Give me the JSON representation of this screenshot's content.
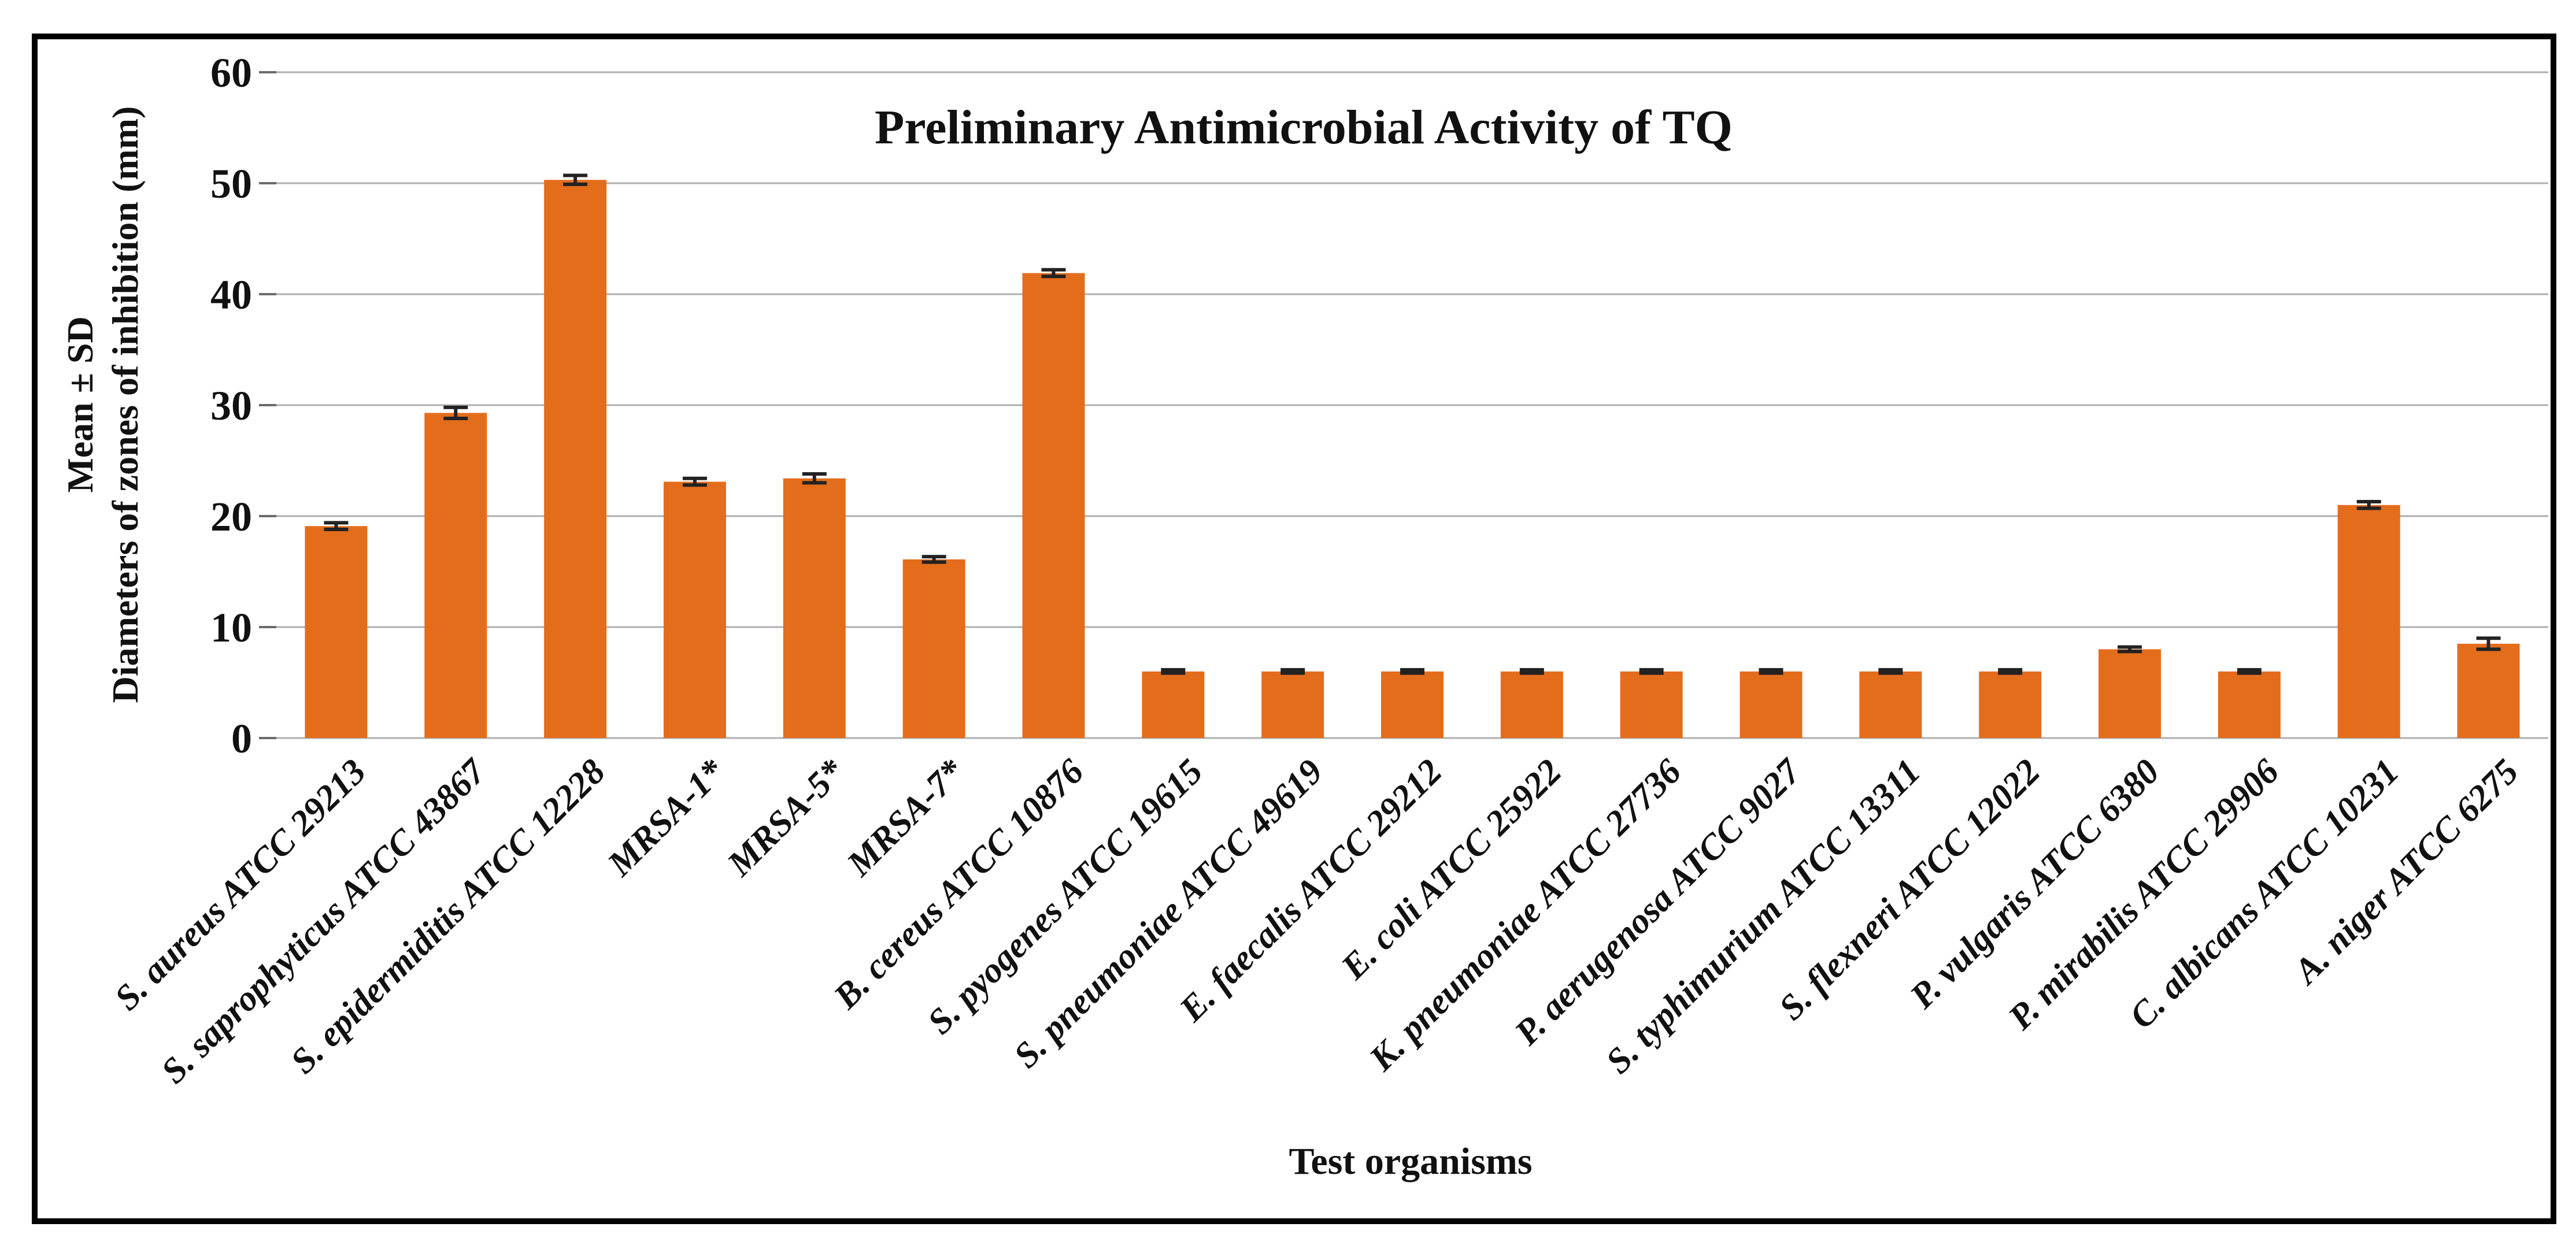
{
  "figure": {
    "title": "Preliminary Antimicrobial Activity of TQ",
    "y_axis_label_line1": "Mean ± SD",
    "y_axis_label_line2": "Diameters of zones of inhibition (mm)",
    "x_axis_label": "Test organisms"
  },
  "colors": {
    "bar": "#E46D1C",
    "gridline": "#AFAFAF",
    "tick": "#6B6B6B",
    "error_bar": "#222222",
    "frame": "#000000",
    "text": "#111111",
    "background": "#FFFFFF"
  },
  "chart_data": {
    "type": "bar",
    "title": "Preliminary Antimicrobial Activity of TQ",
    "xlabel": "Test organisms",
    "ylabel": "Mean ± SD Diameters of zones of inhibition (mm)",
    "ylim": [
      0,
      60
    ],
    "yticks": [
      0,
      10,
      20,
      30,
      40,
      50,
      60
    ],
    "grid": true,
    "legend": "none",
    "bar_color": "#E46D1C",
    "error_bars": true,
    "categories": [
      "S. aureus ATCC 29213",
      "S. saprophyticus ATCC 43867",
      "S. epidermiditis ATCC 12228",
      "MRSA-1*",
      "MRSA-5*",
      "MRSA-7*",
      "B. cereus ATCC 10876",
      "S. pyogenes ATCC 19615",
      "S. pneumoniae ATCC 49619",
      "E. faecalis ATCC 29212",
      "E. coli ATCC 25922",
      "K. pneumoniae ATCC 27736",
      "P. aerugenosa ATCC 9027",
      "S. typhimurium ATCC 13311",
      "S. flexneri ATCC 12022",
      "P. vulgaris ATCC 6380",
      "P. mirabilis ATCC 29906",
      "C. albicans ATCC 10231",
      "A. niger ATCC 6275"
    ],
    "values": [
      19.1,
      29.3,
      50.3,
      23.1,
      23.4,
      16.1,
      41.9,
      6,
      6,
      6,
      6,
      6,
      6,
      6,
      6,
      8,
      6,
      21,
      8.5
    ],
    "errors": [
      0.3,
      0.5,
      0.4,
      0.3,
      0.4,
      0.25,
      0.3,
      0.15,
      0.15,
      0.15,
      0.15,
      0.15,
      0.15,
      0.15,
      0.15,
      0.2,
      0.15,
      0.3,
      0.5
    ]
  }
}
